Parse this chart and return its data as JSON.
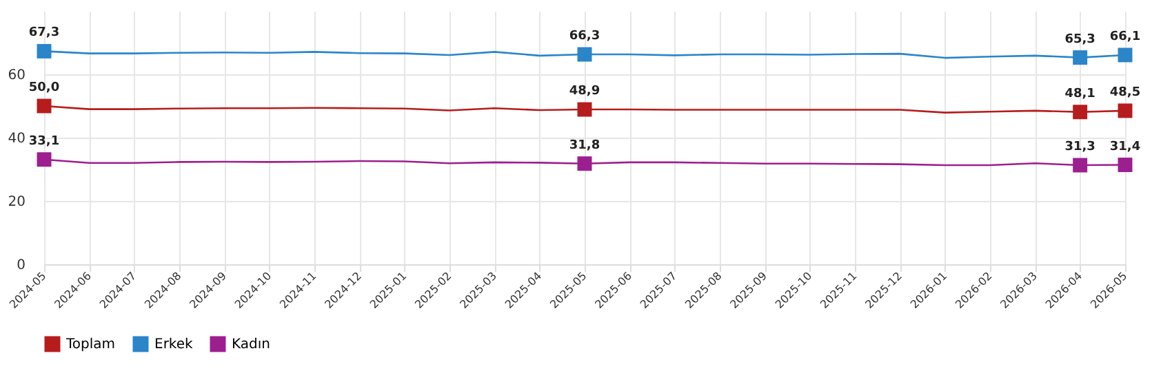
{
  "chart_data": {
    "type": "line",
    "categories": [
      "2024-05",
      "2024-06",
      "2024-07",
      "2024-08",
      "2024-09",
      "2024-10",
      "2024-11",
      "2024-12",
      "2025-01",
      "2025-02",
      "2025-03",
      "2025-04",
      "2025-05",
      "2025-06",
      "2025-07",
      "2025-08",
      "2025-09",
      "2025-10",
      "2025-11",
      "2025-12",
      "2026-01",
      "2026-02",
      "2026-03",
      "2026-04",
      "2026-05"
    ],
    "series": [
      {
        "name": "Toplam",
        "color": "#b71c1c",
        "values": [
          50.0,
          49.0,
          49.0,
          49.2,
          49.3,
          49.3,
          49.4,
          49.3,
          49.2,
          48.6,
          49.3,
          48.7,
          48.9,
          48.9,
          48.8,
          48.8,
          48.8,
          48.8,
          48.8,
          48.8,
          47.9,
          48.2,
          48.5,
          48.1,
          48.5
        ],
        "value_labels": [
          "50,0",
          null,
          null,
          null,
          null,
          null,
          null,
          null,
          null,
          null,
          null,
          null,
          "48,9",
          null,
          null,
          null,
          null,
          null,
          null,
          null,
          null,
          null,
          null,
          "48,1",
          "48,5"
        ]
      },
      {
        "name": "Erkek",
        "color": "#2a85c9",
        "values": [
          67.3,
          66.6,
          66.6,
          66.8,
          66.9,
          66.8,
          67.1,
          66.7,
          66.6,
          66.1,
          67.1,
          65.9,
          66.3,
          66.3,
          66.0,
          66.3,
          66.3,
          66.2,
          66.4,
          66.5,
          65.2,
          65.6,
          65.9,
          65.3,
          66.1
        ],
        "value_labels": [
          "67,3",
          null,
          null,
          null,
          null,
          null,
          null,
          null,
          null,
          null,
          null,
          null,
          "66,3",
          null,
          null,
          null,
          null,
          null,
          null,
          null,
          null,
          null,
          null,
          "65,3",
          "66,1"
        ]
      },
      {
        "name": "Kadın",
        "color": "#9c1f8f",
        "values": [
          33.1,
          32.0,
          32.0,
          32.3,
          32.4,
          32.3,
          32.4,
          32.6,
          32.5,
          31.9,
          32.2,
          32.1,
          31.8,
          32.2,
          32.2,
          32.0,
          31.8,
          31.8,
          31.7,
          31.6,
          31.3,
          31.3,
          31.9,
          31.3,
          31.4
        ],
        "value_labels": [
          "33,1",
          null,
          null,
          null,
          null,
          null,
          null,
          null,
          null,
          null,
          null,
          null,
          "31,8",
          null,
          null,
          null,
          null,
          null,
          null,
          null,
          null,
          null,
          null,
          "31,3",
          "31,4"
        ]
      }
    ],
    "ylim": [
      0,
      80
    ],
    "yticks": [
      0,
      20,
      40,
      60
    ],
    "grid": true,
    "legend": "bottom",
    "line_style": "solid"
  }
}
